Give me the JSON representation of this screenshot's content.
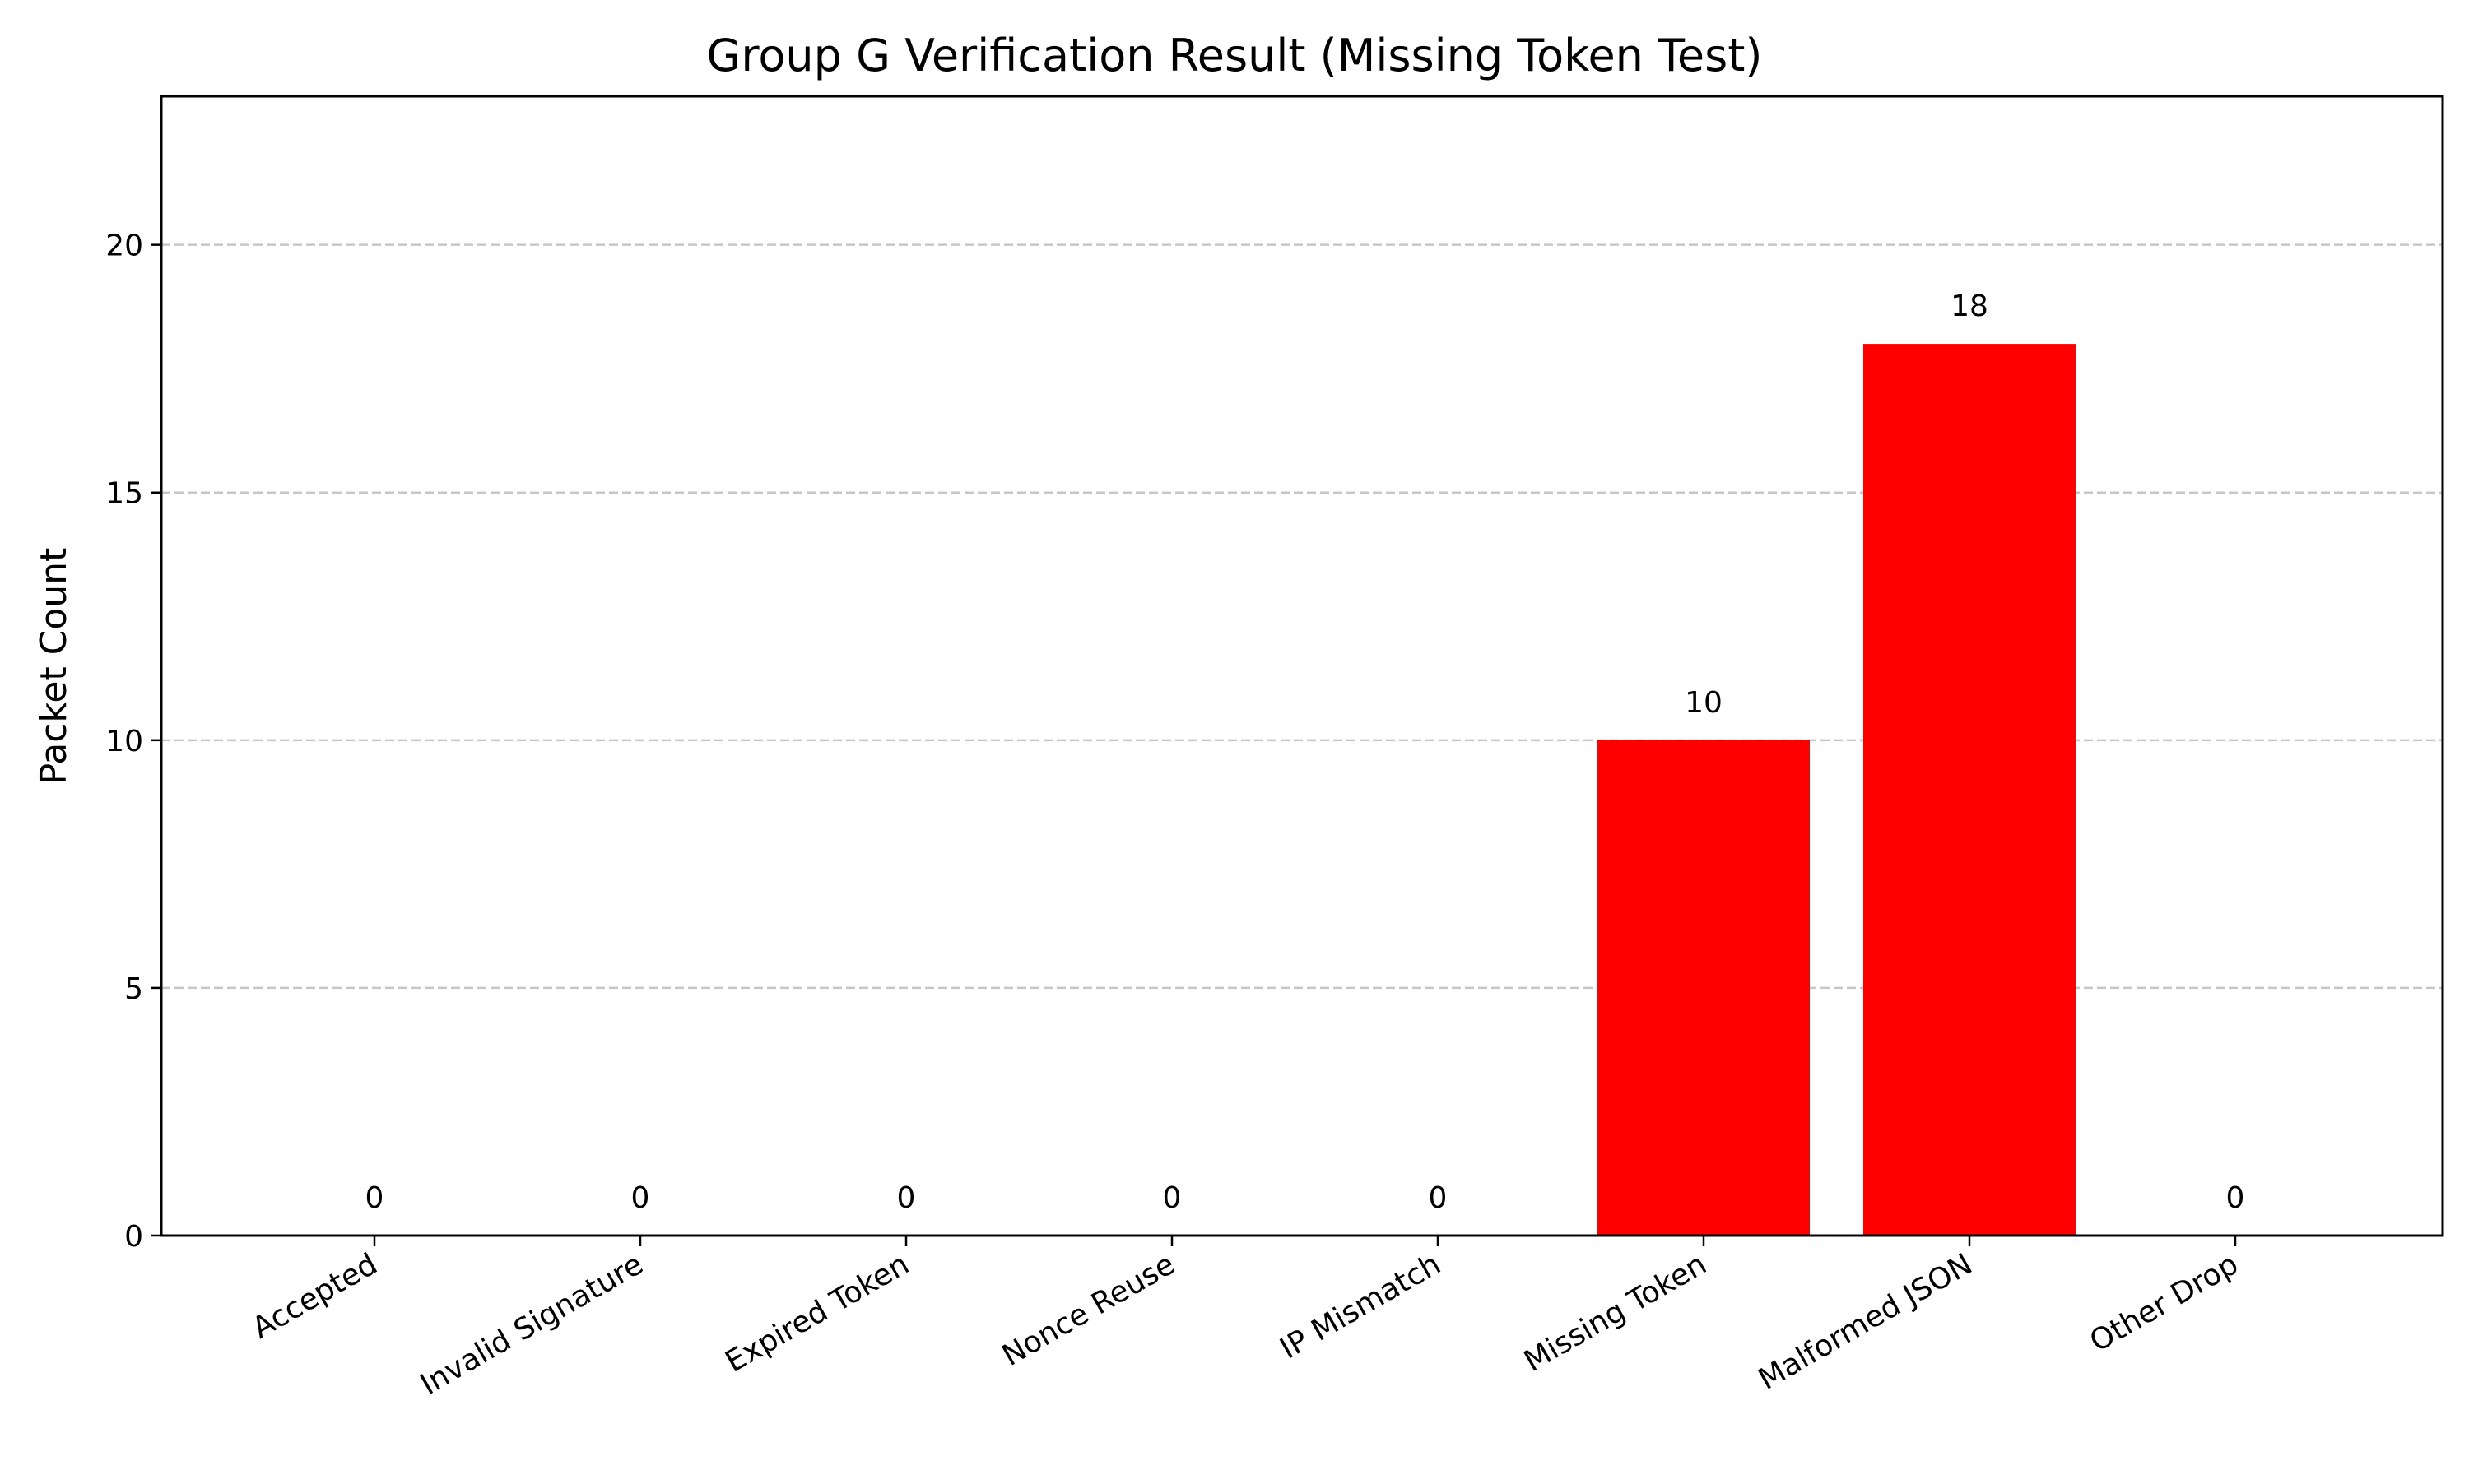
{
  "chart_data": {
    "type": "bar",
    "title": "Group G Verification Result (Missing Token Test)",
    "xlabel": "",
    "ylabel": "Packet Count",
    "categories": [
      "Accepted",
      "Invalid Signature",
      "Expired Token",
      "Nonce Reuse",
      "IP Mismatch",
      "Missing Token",
      "Malformed JSON",
      "Other Drop"
    ],
    "values": [
      0,
      0,
      0,
      0,
      0,
      10,
      18,
      0
    ],
    "data_labels": [
      "0",
      "0",
      "0",
      "0",
      "0",
      "10",
      "18",
      "0"
    ],
    "ylim": [
      0,
      23
    ],
    "yticks": [
      0,
      5,
      10,
      15,
      20
    ],
    "ytick_labels": [
      "0",
      "5",
      "10",
      "15",
      "20"
    ],
    "grid": "y-dashed",
    "bar_color": "#ff0000",
    "grid_color": "#b0b0b0"
  }
}
